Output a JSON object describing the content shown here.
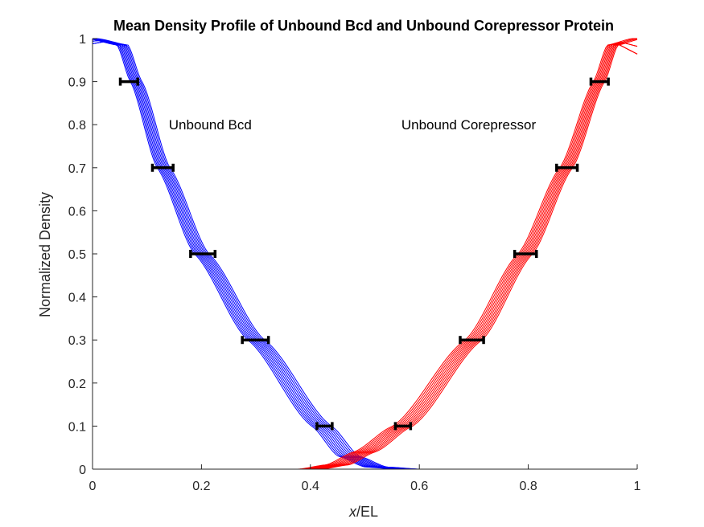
{
  "chart_data": {
    "type": "line",
    "title": "Mean Density Profile of Unbound Bcd and Unbound Corepressor Protein",
    "xlabel_italic": "x",
    "xlabel_rest": "/EL",
    "ylabel": "Normalized Density",
    "xlim": [
      0,
      1
    ],
    "ylim": [
      0,
      1
    ],
    "xticks": [
      "0",
      "0.2",
      "0.4",
      "0.6",
      "0.8",
      "1"
    ],
    "yticks": [
      "0",
      "0.1",
      "0.2",
      "0.3",
      "0.4",
      "0.5",
      "0.6",
      "0.7",
      "0.8",
      "0.9",
      "1"
    ],
    "grid": false,
    "annotations": [
      {
        "text": "Unbound Bcd",
        "x": 0.14,
        "y": 0.8
      },
      {
        "text": "Unbound Corepressor",
        "x": 0.567,
        "y": 0.8
      }
    ],
    "series": [
      {
        "group": "bcd",
        "color": "#0000ff",
        "curve_count": 10,
        "mean_points": [
          [
            0.0,
            1.0
          ],
          [
            0.055,
            0.985
          ],
          [
            0.08,
            0.9
          ],
          [
            0.13,
            0.7
          ],
          [
            0.2,
            0.5
          ],
          [
            0.3,
            0.3
          ],
          [
            0.42,
            0.1
          ],
          [
            0.47,
            0.03
          ],
          [
            0.52,
            0.005
          ],
          [
            0.58,
            0.0
          ],
          [
            1.0,
            0.0
          ]
        ]
      },
      {
        "group": "corepressor",
        "color": "#ff0000",
        "curve_count": 10,
        "mean_points": [
          [
            0.0,
            0.0
          ],
          [
            0.4,
            0.0
          ],
          [
            0.45,
            0.01
          ],
          [
            0.5,
            0.04
          ],
          [
            0.57,
            0.1
          ],
          [
            0.7,
            0.3
          ],
          [
            0.795,
            0.5
          ],
          [
            0.87,
            0.7
          ],
          [
            0.93,
            0.9
          ],
          [
            0.955,
            0.985
          ],
          [
            1.0,
            1.0
          ]
        ]
      }
    ],
    "error_bars": [
      {
        "y": 0.9,
        "xmin": 0.051,
        "xmax": 0.083
      },
      {
        "y": 0.7,
        "xmin": 0.11,
        "xmax": 0.148
      },
      {
        "y": 0.5,
        "xmin": 0.18,
        "xmax": 0.225
      },
      {
        "y": 0.3,
        "xmin": 0.275,
        "xmax": 0.323
      },
      {
        "y": 0.1,
        "xmin": 0.412,
        "xmax": 0.44
      },
      {
        "y": 0.1,
        "xmin": 0.556,
        "xmax": 0.584
      },
      {
        "y": 0.3,
        "xmin": 0.675,
        "xmax": 0.718
      },
      {
        "y": 0.5,
        "xmin": 0.775,
        "xmax": 0.815
      },
      {
        "y": 0.7,
        "xmin": 0.852,
        "xmax": 0.89
      },
      {
        "y": 0.9,
        "xmin": 0.915,
        "xmax": 0.947
      }
    ]
  }
}
